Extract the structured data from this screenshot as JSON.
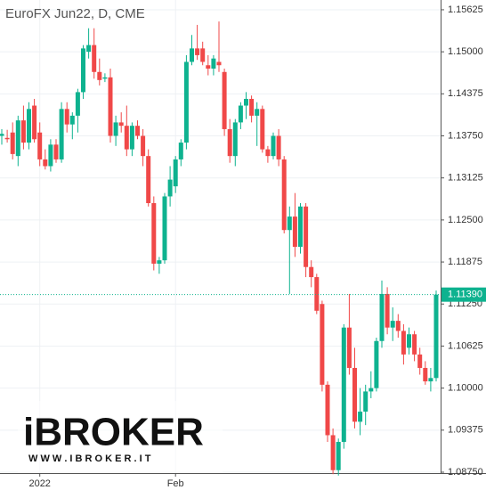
{
  "chart_data": {
    "type": "candlestick",
    "title": "EuroFX Jun22, D, CME",
    "categories": [
      null,
      null,
      null,
      null,
      null,
      null,
      null,
      "2022",
      null,
      null,
      null,
      null,
      null,
      null,
      null,
      null,
      null,
      null,
      null,
      null,
      null,
      null,
      null,
      null,
      null,
      null,
      null,
      null,
      null,
      null,
      null,
      null,
      "Feb",
      null,
      null,
      null,
      null,
      null,
      null,
      null,
      null,
      null,
      null,
      null,
      null,
      null,
      null,
      null,
      null,
      null,
      null,
      null,
      null,
      null,
      null,
      null,
      null,
      null,
      null,
      null,
      null,
      null,
      null,
      null,
      null,
      null,
      null,
      null,
      null,
      null,
      null,
      null,
      null,
      null,
      null,
      null,
      null,
      null,
      null,
      null,
      null
    ],
    "ohlc": [
      [
        1.1375,
        1.1385,
        1.1362,
        1.1378
      ],
      [
        1.1372,
        1.1384,
        1.1365,
        1.137
      ],
      [
        1.138,
        1.1395,
        1.134,
        1.1348
      ],
      [
        1.1345,
        1.1405,
        1.133,
        1.1398
      ],
      [
        1.1398,
        1.142,
        1.1355,
        1.1365
      ],
      [
        1.1365,
        1.1425,
        1.1355,
        1.1415
      ],
      [
        1.142,
        1.143,
        1.1365,
        1.137
      ],
      [
        1.138,
        1.1395,
        1.133,
        1.134
      ],
      [
        1.134,
        1.1355,
        1.1325,
        1.133
      ],
      [
        1.133,
        1.137,
        1.1322,
        1.1362
      ],
      [
        1.1362,
        1.137,
        1.1335,
        1.134
      ],
      [
        1.134,
        1.1425,
        1.1335,
        1.1415
      ],
      [
        1.1415,
        1.1425,
        1.138,
        1.1392
      ],
      [
        1.1392,
        1.141,
        1.137,
        1.1405
      ],
      [
        1.1405,
        1.1445,
        1.138,
        1.144
      ],
      [
        1.144,
        1.151,
        1.143,
        1.1505
      ],
      [
        1.15,
        1.1535,
        1.149,
        1.151
      ],
      [
        1.151,
        1.1535,
        1.146,
        1.147
      ],
      [
        1.147,
        1.149,
        1.145,
        1.1458
      ],
      [
        1.146,
        1.1468,
        1.1455,
        1.1462
      ],
      [
        1.1462,
        1.1475,
        1.1365,
        1.1375
      ],
      [
        1.1375,
        1.1405,
        1.136,
        1.1395
      ],
      [
        1.1395,
        1.141,
        1.138,
        1.139
      ],
      [
        1.139,
        1.142,
        1.1345,
        1.1355
      ],
      [
        1.1355,
        1.1395,
        1.1345,
        1.139
      ],
      [
        1.139,
        1.1398,
        1.137,
        1.1375
      ],
      [
        1.1375,
        1.1385,
        1.133,
        1.1345
      ],
      [
        1.1345,
        1.1355,
        1.127,
        1.1275
      ],
      [
        1.1275,
        1.1285,
        1.1175,
        1.1185
      ],
      [
        1.1185,
        1.1195,
        1.117,
        1.119
      ],
      [
        1.119,
        1.129,
        1.1185,
        1.1285
      ],
      [
        1.1285,
        1.133,
        1.127,
        1.131
      ],
      [
        1.13,
        1.1345,
        1.129,
        1.134
      ],
      [
        1.134,
        1.137,
        1.133,
        1.1365
      ],
      [
        1.1365,
        1.1495,
        1.1355,
        1.1485
      ],
      [
        1.1485,
        1.1525,
        1.148,
        1.1505
      ],
      [
        1.1505,
        1.154,
        1.1488,
        1.1495
      ],
      [
        1.1505,
        1.1515,
        1.148,
        1.1485
      ],
      [
        1.148,
        1.1495,
        1.1465,
        1.1475
      ],
      [
        1.1475,
        1.1495,
        1.1465,
        1.149
      ],
      [
        1.1485,
        1.1545,
        1.147,
        1.148
      ],
      [
        1.147,
        1.1475,
        1.1375,
        1.1385
      ],
      [
        1.1385,
        1.14,
        1.1335,
        1.1345
      ],
      [
        1.1345,
        1.14,
        1.133,
        1.1395
      ],
      [
        1.1395,
        1.1425,
        1.1385,
        1.142
      ],
      [
        1.142,
        1.144,
        1.14,
        1.143
      ],
      [
        1.143,
        1.1435,
        1.1395,
        1.1405
      ],
      [
        1.1405,
        1.1425,
        1.136,
        1.1415
      ],
      [
        1.1415,
        1.142,
        1.135,
        1.1355
      ],
      [
        1.1355,
        1.136,
        1.1335,
        1.1345
      ],
      [
        1.1345,
        1.138,
        1.134,
        1.1375
      ],
      [
        1.1375,
        1.1385,
        1.133,
        1.134
      ],
      [
        1.134,
        1.1345,
        1.123,
        1.1235
      ],
      [
        1.1235,
        1.127,
        1.114,
        1.1255
      ],
      [
        1.1255,
        1.129,
        1.1195,
        1.121
      ],
      [
        1.121,
        1.1275,
        1.12,
        1.127
      ],
      [
        1.127,
        1.1275,
        1.1165,
        1.118
      ],
      [
        1.118,
        1.119,
        1.115,
        1.1165
      ],
      [
        1.1165,
        1.117,
        1.111,
        1.1115
      ],
      [
        1.1125,
        1.113,
        1.0995,
        1.1005
      ],
      [
        1.1005,
        1.101,
        1.092,
        1.093
      ],
      [
        1.093,
        1.094,
        1.0872,
        1.0878
      ],
      [
        1.0878,
        1.0925,
        1.087,
        1.092
      ],
      [
        1.092,
        1.1095,
        1.091,
        1.109
      ],
      [
        1.109,
        1.114,
        1.102,
        1.103
      ],
      [
        1.103,
        1.106,
        1.094,
        1.095
      ],
      [
        1.095,
        1.1,
        1.093,
        1.0965
      ],
      [
        1.0965,
        1.1005,
        1.0945,
        1.0995
      ],
      [
        1.0995,
        1.1025,
        1.0985,
        1.1
      ],
      [
        1.1,
        1.1075,
        1.0995,
        1.107
      ],
      [
        1.107,
        1.116,
        1.106,
        1.114
      ],
      [
        1.114,
        1.115,
        1.108,
        1.109
      ],
      [
        1.109,
        1.112,
        1.107,
        1.11
      ],
      [
        1.11,
        1.111,
        1.1075,
        1.1085
      ],
      [
        1.1085,
        1.1095,
        1.1035,
        1.105
      ],
      [
        1.106,
        1.109,
        1.105,
        1.108
      ],
      [
        1.108,
        1.1085,
        1.104,
        1.105
      ],
      [
        1.105,
        1.106,
        1.102,
        1.103
      ],
      [
        1.103,
        1.104,
        1.1005,
        1.101
      ],
      [
        1.101,
        1.103,
        1.0995,
        1.1015
      ],
      [
        1.1015,
        1.1145,
        1.101,
        1.1139
      ]
    ],
    "up_color": "#0eb28f",
    "down_color": "#f04848",
    "ylim": [
      1.0875,
      1.1577
    ],
    "yticks": [
      1.15625,
      {
        "value": 1.15,
        "label": "1.15000"
      },
      1.14375,
      {
        "value": 1.1375,
        "label": "1.13750"
      },
      1.13125,
      {
        "value": 1.125,
        "label": "1.12500"
      },
      1.11875,
      {
        "value": 1.1125,
        "label": "1.11250"
      },
      1.10625,
      {
        "value": 1.1,
        "label": "1.10000"
      },
      1.09375,
      {
        "value": 1.0875,
        "label": "1.08750"
      }
    ],
    "last_price": {
      "value": 1.1139,
      "label": "1.11390"
    },
    "grid": true
  },
  "logo": {
    "name": "iBROKER",
    "url": "W W W . I B R O K E R . I T"
  }
}
